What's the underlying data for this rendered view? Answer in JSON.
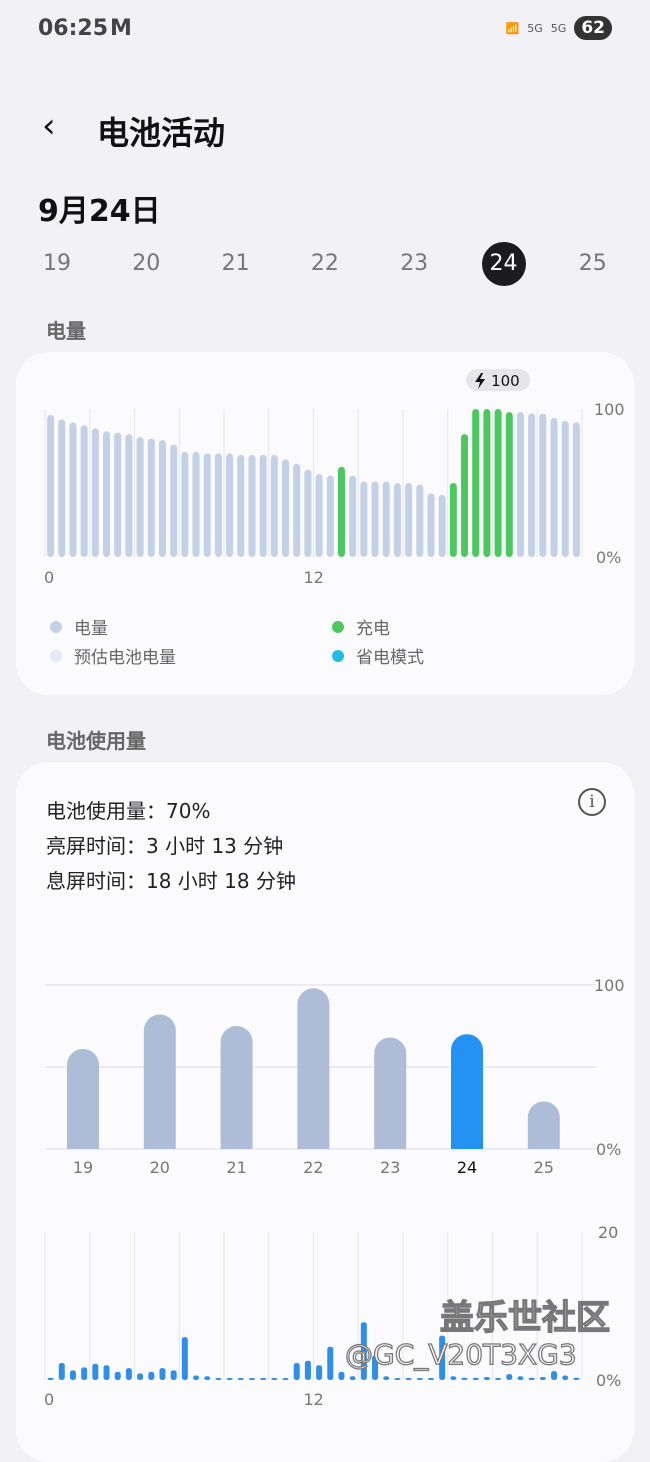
{
  "status_bar": {
    "time": "06:25",
    "notification_icon": "M",
    "network": [
      "wifi-6",
      "5G",
      "5G"
    ],
    "battery": "62"
  },
  "header": {
    "title": "电池活动",
    "back_icon": "chevron-left"
  },
  "date_label": "9月24日",
  "days": [
    {
      "label": "19"
    },
    {
      "label": "20"
    },
    {
      "label": "21"
    },
    {
      "label": "22"
    },
    {
      "label": "23"
    },
    {
      "label": "24",
      "selected": true
    },
    {
      "label": "25"
    }
  ],
  "battery_section": {
    "title": "电量",
    "legend": [
      {
        "label": "电量",
        "color": "#c3d1e6"
      },
      {
        "label": "充电",
        "color": "#4cc95e"
      },
      {
        "label": "预估电池电量",
        "color": "#e3e9f2"
      },
      {
        "label": "省电模式",
        "color": "#22bde0"
      }
    ]
  },
  "usage_section": {
    "title": "电池使用量",
    "usage_label": "电池使用量：",
    "usage_value": "70%",
    "screen_on_label": "亮屏时间：",
    "screen_on_value": "3 小时 13 分钟",
    "screen_off_label": "息屏时间：",
    "screen_off_value": "18 小时 18 分钟"
  },
  "watermark": {
    "line1": "盖乐世社区",
    "line2": "@GC_V20T3XG3"
  },
  "chart_data": [
    {
      "type": "bar",
      "title": "电量",
      "ylim": [
        0,
        100
      ],
      "yticks": [
        "100",
        "0%"
      ],
      "xticks": [
        "0",
        "12"
      ],
      "x_unit": "hour",
      "interval_hours": 0.5,
      "tooltip": "100",
      "tooltip_icon": "bolt",
      "values": [
        96,
        93,
        91,
        89,
        87,
        85,
        84,
        83,
        81,
        80,
        79,
        76,
        71,
        71,
        70,
        70,
        70,
        69,
        69,
        69,
        69,
        66,
        63,
        59,
        56,
        55,
        61,
        55,
        51,
        51,
        51,
        50,
        50,
        49,
        43,
        42,
        50,
        83,
        100,
        100,
        100,
        98,
        98,
        97,
        97,
        94,
        92,
        91
      ],
      "charging": [
        26,
        36,
        37,
        38,
        39,
        40,
        41
      ],
      "colors": {
        "battery": "#c3d1e6",
        "charging": "#4cc95e"
      }
    },
    {
      "type": "bar",
      "ylim": [
        0,
        100
      ],
      "yticks": [
        "100",
        "0%"
      ],
      "categories": [
        "19",
        "20",
        "21",
        "22",
        "23",
        "24",
        "25"
      ],
      "values": [
        61,
        82,
        75,
        98,
        68,
        70,
        29
      ],
      "selected": "24",
      "colors": {
        "default": "#adbdd7",
        "selected": "#2492f2"
      }
    },
    {
      "type": "bar",
      "ylim": [
        0,
        20
      ],
      "yticks": [
        "20",
        "0%"
      ],
      "xticks": [
        "0",
        "12"
      ],
      "interval_hours": 0.5,
      "values": [
        0.3,
        2.3,
        1.3,
        1.7,
        2.2,
        2,
        1.1,
        1.6,
        0.9,
        1.1,
        1.6,
        1.3,
        5.8,
        0.6,
        0.5,
        0.2,
        0.2,
        0.2,
        0.2,
        0.2,
        0.2,
        0.2,
        2.3,
        2.6,
        2,
        4.5,
        1.1,
        0.5,
        7.8,
        3.3,
        0.5,
        0.2,
        0.2,
        0.2,
        0.2,
        6,
        0.5,
        0.3,
        0.3,
        0.4,
        0.2,
        0.8,
        0.5,
        0.3,
        0.4,
        1.2,
        0.6,
        0.3
      ],
      "color": "#2e8ee8"
    }
  ]
}
